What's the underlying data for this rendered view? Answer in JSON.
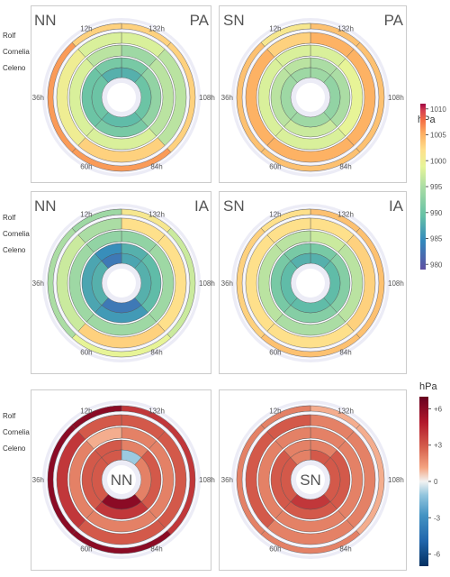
{
  "row_labels": [
    "Rolf",
    "Cornelia",
    "Celeno"
  ],
  "colorbar_abs": {
    "title": "hPa",
    "ticks": [
      1010,
      1005,
      1000,
      995,
      990,
      985,
      980
    ],
    "range": [
      979,
      1011
    ]
  },
  "colorbar_diff": {
    "title": "hPa",
    "ticks": [
      "+6",
      "+3",
      "0",
      "-3",
      "-6"
    ],
    "tick_values": [
      6,
      3,
      0,
      -3,
      -6
    ],
    "range": [
      -7,
      7
    ]
  },
  "chart_data": [
    {
      "type": "radial-heatmap",
      "corner_left": "NN",
      "corner_right": "PA",
      "center_label": "",
      "scale": "abs",
      "lead_time_labels": [
        "12h",
        "132h",
        "108h",
        "84h",
        "60h",
        "36h"
      ],
      "lead_time_angles_deg": [
        -27,
        27,
        90,
        153,
        207,
        270
      ],
      "arc_starts_deg": [
        -42,
        0,
        42,
        138,
        222,
        318
      ],
      "arc_ends_deg": [
        0,
        42,
        138,
        222,
        318,
        360
      ],
      "rings": [
        {
          "name": "Rolf",
          "outer": "pa",
          "values": [
            1003,
            1003,
            1003,
            1006,
            1006,
            1003
          ]
        },
        {
          "name": "Rolf",
          "outer": "pa_inner",
          "values": [
            998,
            998,
            996,
            1003,
            1000,
            998
          ]
        },
        {
          "name": "Cornelia",
          "values": [
            995,
            994,
            996,
            998,
            998,
            996
          ]
        },
        {
          "name": "Celeno",
          "values": [
            991,
            991,
            993,
            991,
            990,
            991
          ]
        },
        {
          "name": "Celeno",
          "values": [
            988,
            988,
            990,
            989,
            990,
            988
          ]
        }
      ]
    },
    {
      "type": "radial-heatmap",
      "corner_left": "SN",
      "corner_right": "PA",
      "center_label": "",
      "scale": "abs",
      "lead_time_labels": [
        "12h",
        "132h",
        "108h",
        "84h",
        "60h",
        "36h"
      ],
      "lead_time_angles_deg": [
        -27,
        27,
        90,
        153,
        207,
        270
      ],
      "arc_starts_deg": [
        -42,
        0,
        42,
        138,
        222,
        318
      ],
      "arc_ends_deg": [
        0,
        42,
        138,
        222,
        318,
        360
      ],
      "rings": [
        {
          "name": "Rolf",
          "values": [
            1001,
            1004,
            1004,
            1004,
            1004,
            1001
          ]
        },
        {
          "name": "Rolf",
          "values": [
            1003,
            1005,
            1005,
            1005,
            1005,
            1003
          ]
        },
        {
          "name": "Cornelia",
          "values": [
            998,
            998,
            999,
            998,
            998,
            998
          ]
        },
        {
          "name": "Celeno",
          "values": [
            996,
            995,
            995,
            997,
            996,
            996
          ]
        },
        {
          "name": "Celeno",
          "values": [
            994,
            994,
            993,
            994,
            994,
            994
          ]
        }
      ]
    },
    {
      "type": "radial-heatmap",
      "corner_left": "NN",
      "corner_right": "IA",
      "center_label": "",
      "scale": "abs",
      "lead_time_labels": [
        "12h",
        "132h",
        "108h",
        "84h",
        "60h",
        "36h"
      ],
      "lead_time_angles_deg": [
        -27,
        27,
        90,
        153,
        207,
        270
      ],
      "arc_starts_deg": [
        -42,
        0,
        42,
        138,
        222,
        318
      ],
      "arc_ends_deg": [
        0,
        42,
        138,
        222,
        318,
        360
      ],
      "rings": [
        {
          "name": "Rolf",
          "values": [
            996,
            1001,
            997,
            999,
            995,
            994
          ]
        },
        {
          "name": "Rolf",
          "values": [
            1000,
            1002,
            1002,
            1003,
            997,
            995
          ]
        },
        {
          "name": "Cornelia",
          "values": [
            993,
            993,
            994,
            994,
            994,
            993
          ]
        },
        {
          "name": "Celeno",
          "values": [
            988,
            988,
            989,
            986,
            987,
            985
          ]
        },
        {
          "name": "Celeno",
          "values": [
            987,
            987,
            988,
            983,
            988,
            983
          ]
        }
      ]
    },
    {
      "type": "radial-heatmap",
      "corner_left": "SN",
      "corner_right": "IA",
      "center_label": "",
      "scale": "abs",
      "lead_time_labels": [
        "12h",
        "132h",
        "108h",
        "84h",
        "60h",
        "36h"
      ],
      "lead_time_angles_deg": [
        -27,
        27,
        90,
        153,
        207,
        270
      ],
      "arc_starts_deg": [
        -42,
        0,
        42,
        138,
        222,
        318
      ],
      "arc_ends_deg": [
        0,
        42,
        138,
        222,
        318,
        360
      ],
      "rings": [
        {
          "name": "Rolf",
          "values": [
            1001,
            1004,
            1004,
            1004,
            1003,
            1002
          ]
        },
        {
          "name": "Rolf",
          "values": [
            1001,
            1002,
            1003,
            1002,
            1002,
            1002
          ]
        },
        {
          "name": "Cornelia",
          "values": [
            996,
            997,
            996,
            995,
            996,
            996
          ]
        },
        {
          "name": "Celeno",
          "values": [
            991,
            991,
            992,
            992,
            991,
            991
          ]
        },
        {
          "name": "Celeno",
          "values": [
            988,
            988,
            989,
            989,
            989,
            988
          ]
        }
      ]
    },
    {
      "type": "radial-heatmap",
      "corner_left": "",
      "corner_right": "",
      "center_label": "NN",
      "scale": "diff",
      "lead_time_labels": [
        "12h",
        "132h",
        "108h",
        "84h",
        "60h",
        "36h"
      ],
      "lead_time_angles_deg": [
        -27,
        27,
        90,
        153,
        207,
        270
      ],
      "arc_starts_deg": [
        -42,
        0,
        42,
        138,
        222,
        318
      ],
      "arc_ends_deg": [
        0,
        42,
        138,
        222,
        318,
        360
      ],
      "rings": [
        {
          "name": "Rolf",
          "values": [
            6,
            4,
            4,
            6,
            6,
            6
          ]
        },
        {
          "name": "Rolf",
          "values": [
            2,
            3,
            3,
            3,
            4,
            3
          ]
        },
        {
          "name": "Cornelia",
          "values": [
            1,
            2,
            2,
            2,
            2,
            1
          ]
        },
        {
          "name": "Celeno",
          "values": [
            2,
            2,
            3,
            4,
            3,
            3
          ]
        },
        {
          "name": "Celeno",
          "values": [
            1,
            -1,
            2,
            6,
            3,
            3
          ]
        }
      ]
    },
    {
      "type": "radial-heatmap",
      "corner_left": "",
      "corner_right": "",
      "center_label": "SN",
      "scale": "diff",
      "lead_time_labels": [
        "12h",
        "132h",
        "108h",
        "84h",
        "60h",
        "36h"
      ],
      "lead_time_angles_deg": [
        -27,
        27,
        90,
        153,
        207,
        270
      ],
      "arc_starts_deg": [
        -42,
        0,
        42,
        138,
        222,
        318
      ],
      "arc_ends_deg": [
        0,
        42,
        138,
        222,
        318,
        360
      ],
      "rings": [
        {
          "name": "Rolf",
          "values": [
            0,
            1,
            1,
            2,
            2,
            2
          ]
        },
        {
          "name": "Rolf",
          "values": [
            2,
            2,
            2,
            2,
            3,
            3
          ]
        },
        {
          "name": "Cornelia",
          "values": [
            1,
            2,
            2,
            2,
            2,
            2
          ]
        },
        {
          "name": "Celeno",
          "values": [
            2,
            2,
            3,
            3,
            3,
            2
          ]
        },
        {
          "name": "Celeno",
          "values": [
            2,
            3,
            3,
            4,
            3,
            2
          ]
        }
      ]
    }
  ]
}
